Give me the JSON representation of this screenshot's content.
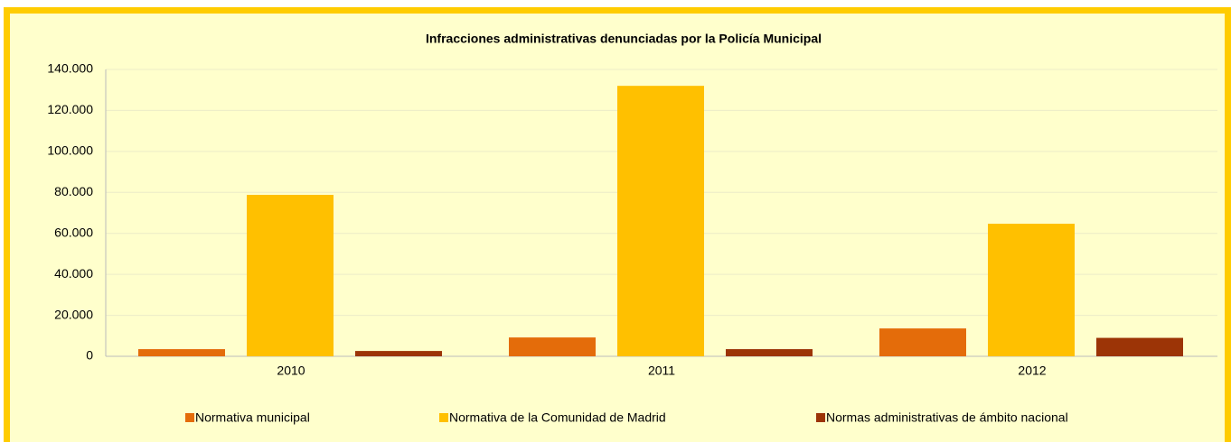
{
  "chart_data": {
    "type": "bar",
    "title": "Infracciones administrativas denunciadas por la Policía Municipal",
    "categories": [
      "2010",
      "2011",
      "2012"
    ],
    "series": [
      {
        "name": "Normativa municipal",
        "color": "#E46C0A",
        "values": [
          3500,
          9200,
          13600
        ]
      },
      {
        "name": "Normativa de la Comunidad de Madrid",
        "color": "#FFC000",
        "values": [
          78800,
          132000,
          64700
        ]
      },
      {
        "name": "Normas administrativas de ámbito nacional",
        "color": "#9C3406",
        "values": [
          2600,
          3500,
          9000
        ]
      }
    ],
    "ylim": [
      0,
      140000
    ],
    "yticks": [
      0,
      {
        "value": 20000,
        "label": "20.000"
      },
      {
        "value": 40000,
        "label": "40.000"
      },
      {
        "value": 60000,
        "label": "60.000"
      },
      {
        "value": 80000,
        "label": "80.000"
      },
      {
        "value": 100000,
        "label": "100.000"
      },
      {
        "value": 120000,
        "label": "120.000"
      },
      {
        "value": 140000,
        "label": "140.000"
      }
    ],
    "grid": true,
    "legend": "bottom"
  }
}
